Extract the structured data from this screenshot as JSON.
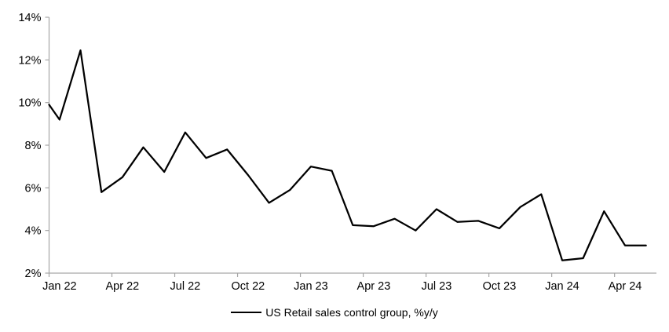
{
  "chart_data": {
    "type": "line",
    "title": "",
    "legend": {
      "position": "bottom",
      "label": "US Retail sales control group, %y/y"
    },
    "series": [
      {
        "name": "US Retail sales control group, %y/y",
        "color": "#000000",
        "axis_edge_value": 9.9,
        "values": [
          9.2,
          12.45,
          5.8,
          6.5,
          7.9,
          6.75,
          8.6,
          7.4,
          7.8,
          6.6,
          5.3,
          5.9,
          7.0,
          6.8,
          4.25,
          4.2,
          4.55,
          4.0,
          5.0,
          4.4,
          4.45,
          4.1,
          5.1,
          5.7,
          2.6,
          2.7,
          4.9,
          3.3,
          3.3
        ]
      }
    ],
    "categories": [
      "Jan 22",
      "Feb 22",
      "Mar 22",
      "Apr 22",
      "May 22",
      "Jun 22",
      "Jul 22",
      "Aug 22",
      "Sep 22",
      "Oct 22",
      "Nov 22",
      "Dec 22",
      "Jan 23",
      "Feb 23",
      "Mar 23",
      "Apr 23",
      "May 23",
      "Jun 23",
      "Jul 23",
      "Aug 23",
      "Sep 23",
      "Oct 23",
      "Nov 23",
      "Dec 23",
      "Jan 24",
      "Feb 24",
      "Mar 24",
      "Apr 24",
      "May 24"
    ],
    "x_tick_labels": [
      "Jan 22",
      "Apr 22",
      "Jul 22",
      "Oct 22",
      "Jan 23",
      "Apr 23",
      "Jul 23",
      "Oct 23",
      "Jan 24",
      "Apr 24"
    ],
    "x_label_every_n": 3,
    "y_ticks": [
      "14%",
      "12%",
      "10%",
      "8%",
      "6%",
      "4%",
      "2%"
    ],
    "y_min": 2,
    "y_max": 14,
    "y_step": 2,
    "xlabel": "",
    "ylabel": "",
    "gridlines": false,
    "axis_color": "#a6a6a6",
    "background_color": "#ffffff"
  }
}
